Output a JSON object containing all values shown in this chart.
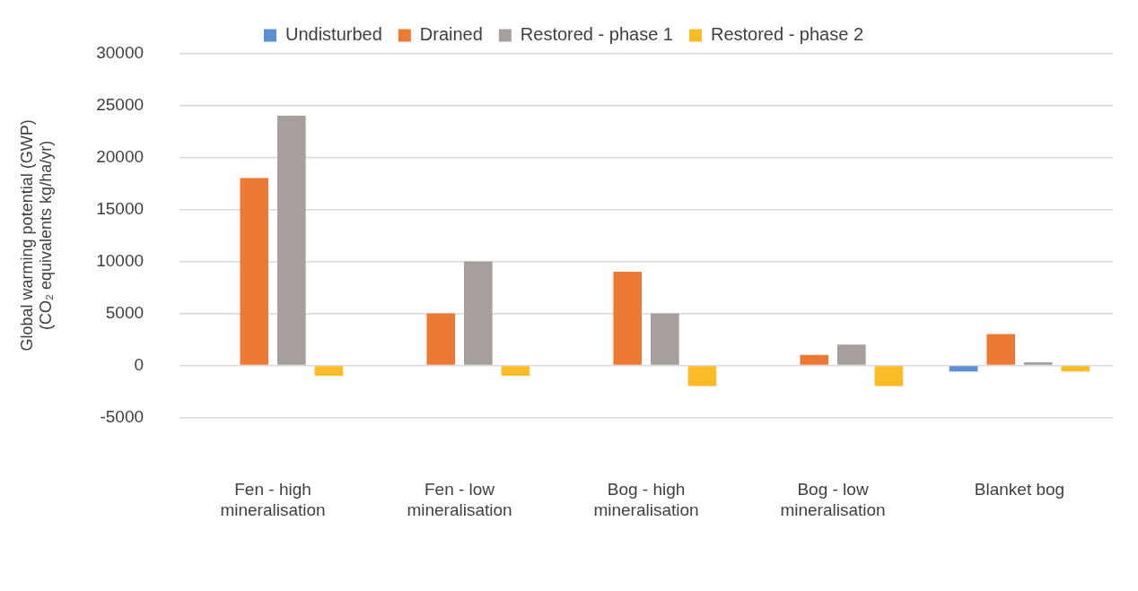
{
  "chart_data": {
    "type": "bar",
    "ylabel": "Global warming potential (GWP)\n(CO₂ equivalents kg/ha/yr)",
    "categories": [
      "Fen - high\nmineralisation",
      "Fen - low\nmineralisation",
      "Bog - high\nmineralisation",
      "Bog - low\nmineralisation",
      "Blanket bog"
    ],
    "series": [
      {
        "name": "Undisturbed",
        "color": "#5b8ed0",
        "values": [
          null,
          null,
          null,
          null,
          -600
        ]
      },
      {
        "name": "Drained",
        "color": "#ec7a34",
        "values": [
          18000,
          5000,
          9000,
          1000,
          3000
        ]
      },
      {
        "name": "Restored - phase 1",
        "color": "#a69f9b",
        "values": [
          24000,
          10000,
          5000,
          2000,
          300
        ]
      },
      {
        "name": "Restored - phase 2",
        "color": "#f9bc27",
        "values": [
          -1000,
          -1000,
          -2000,
          -2000,
          -600
        ]
      }
    ],
    "ylim": [
      -5000,
      30000
    ],
    "yticks": [
      -5000,
      0,
      5000,
      10000,
      15000,
      20000,
      25000,
      30000
    ],
    "grid": "y",
    "legend": "top"
  }
}
